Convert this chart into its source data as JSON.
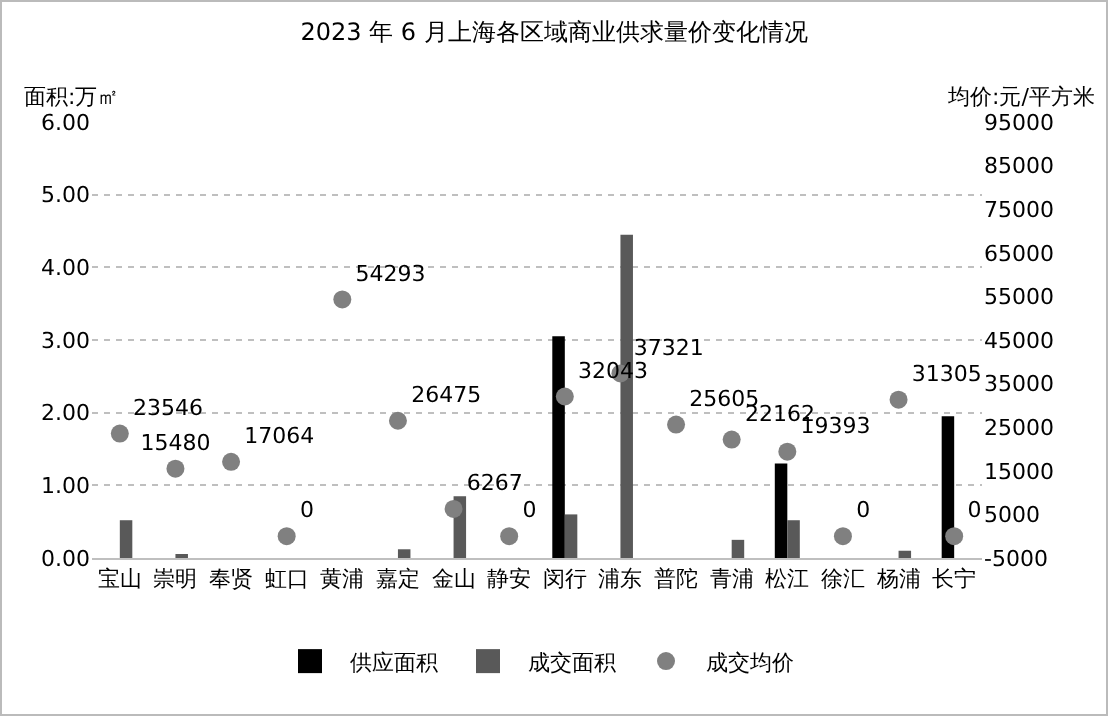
{
  "chart_data": {
    "type": "bar",
    "title": "2023 年 6 月上海各区域商业供求量价变化情况",
    "ylabel": "面积:万㎡",
    "y2label": "均价:元/平方米",
    "categories": [
      "宝山",
      "崇明",
      "奉贤",
      "虹口",
      "黄浦",
      "嘉定",
      "金山",
      "静安",
      "闵行",
      "浦东",
      "普陀",
      "青浦",
      "松江",
      "徐汇",
      "杨浦",
      "长宁"
    ],
    "series": [
      {
        "name": "供应面积",
        "color": "#000000",
        "values": [
          null,
          null,
          null,
          null,
          null,
          null,
          null,
          null,
          3.05,
          null,
          null,
          null,
          1.3,
          null,
          null,
          1.95
        ]
      },
      {
        "name": "成交面积",
        "color": "#595959",
        "values": [
          0.52,
          0.05,
          null,
          null,
          null,
          0.12,
          0.85,
          null,
          0.6,
          4.45,
          null,
          0.25,
          0.52,
          null,
          0.1,
          null
        ]
      },
      {
        "name": "成交均价",
        "type": "scatter",
        "axis": "y2",
        "color": "#808080",
        "values": [
          23546,
          15480,
          17064,
          0,
          54293,
          26475,
          6267,
          0,
          32043,
          37321,
          25605,
          22162,
          19393,
          0,
          31305,
          0
        ],
        "value_labels": [
          "23546",
          "15480",
          "17064",
          "0",
          "54293",
          "26475",
          "6267",
          "0",
          "32043",
          "37321",
          "25605",
          "22162",
          "19393",
          "0",
          "31305",
          "0"
        ]
      }
    ],
    "ylim": [
      0,
      6
    ],
    "yticks": [
      {
        "value": 0,
        "label": "0.00"
      },
      {
        "value": 1,
        "label": "1.00"
      },
      {
        "value": 2,
        "label": "2.00"
      },
      {
        "value": 3,
        "label": "3.00"
      },
      {
        "value": 4,
        "label": "4.00"
      },
      {
        "value": 5,
        "label": "5.00"
      },
      {
        "value": 6,
        "label": "6.00"
      }
    ],
    "y2lim": [
      -5000,
      95000
    ],
    "y2ticks": [
      -5000,
      5000,
      15000,
      25000,
      35000,
      45000,
      55000,
      65000,
      75000,
      85000,
      95000
    ],
    "grid": "y",
    "legend": "bottom",
    "marker": "circle"
  }
}
